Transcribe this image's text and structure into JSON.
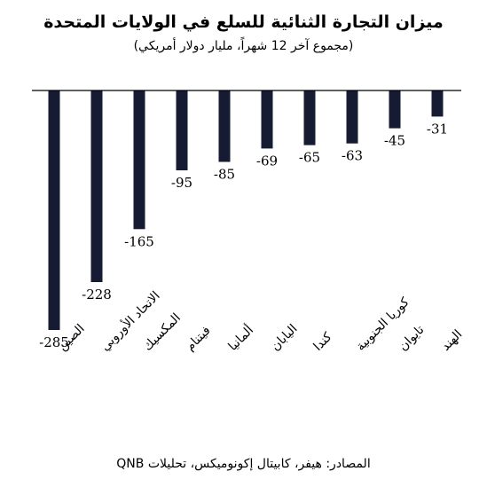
{
  "header": {
    "title": "ميزان التجارة الثنائية للسلع في الولايات المتحدة",
    "subtitle": "(مجموع آخر 12 شهراً، مليار دولار أمريكي)"
  },
  "source": "المصادر: هيفر، كابيتال إكونوميكس، تحليلات QNB",
  "colors": {
    "bar": "#141b33",
    "axis": "#000000"
  },
  "chart_data": {
    "type": "bar",
    "orientation": "vertical",
    "categories": [
      "الصين",
      "الاتحاد الأوروبي",
      "المكسيك",
      "فيتنام",
      "ألمانيا",
      "اليابان",
      "كندا",
      "كوريا الجنوبية",
      "تايوان",
      "الهند"
    ],
    "values": [
      -285,
      -228,
      -165,
      -95,
      -85,
      -69,
      -65,
      -63,
      -45,
      -31
    ],
    "data_labels": [
      "-285",
      "-228",
      "-165",
      "-95",
      "-85",
      "-69",
      "-65",
      "-63",
      "-45",
      "-31"
    ],
    "ylim": [
      -285,
      0
    ],
    "grid": false,
    "legend": "none"
  }
}
